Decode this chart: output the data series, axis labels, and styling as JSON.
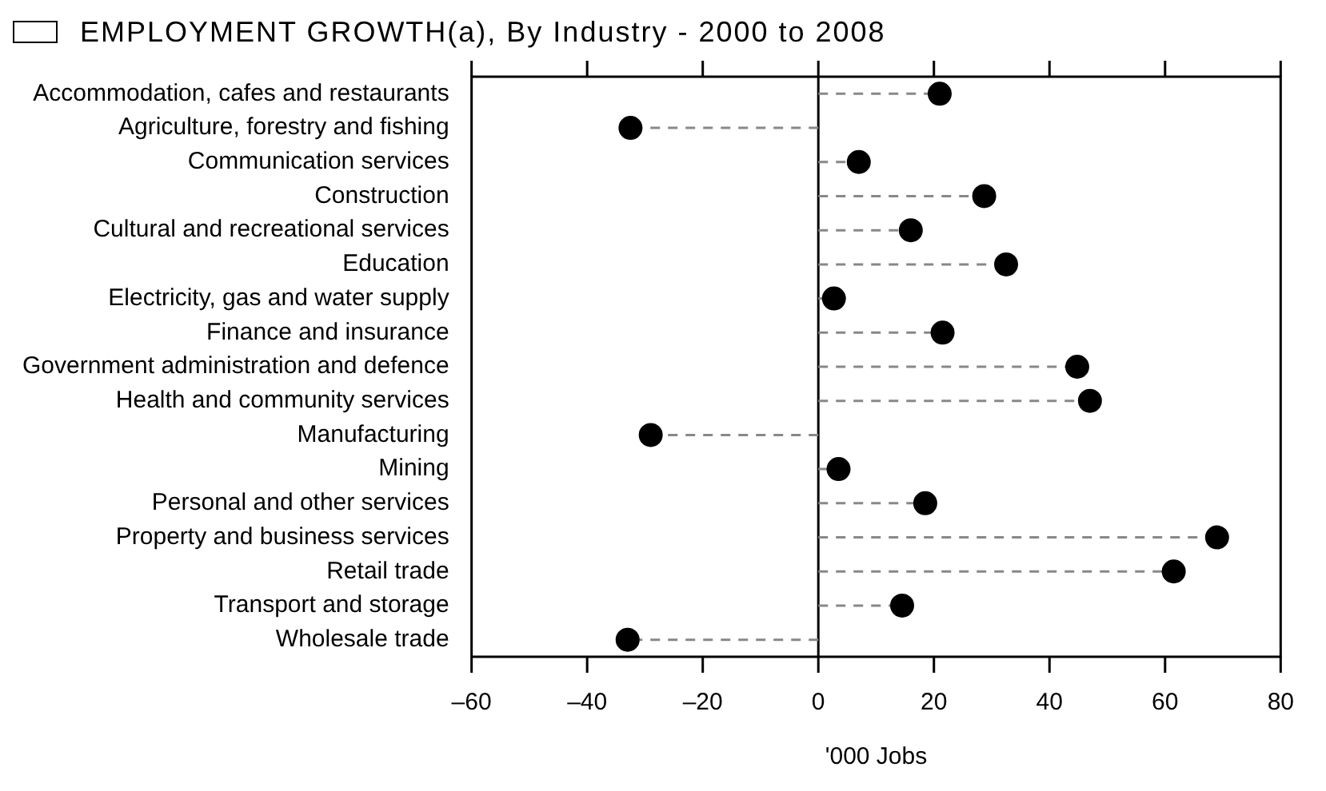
{
  "chart_data": {
    "type": "lollipop",
    "orientation": "horizontal",
    "title": "EMPLOYMENT GROWTH(a), By Industry - 2000 to 2008",
    "xlabel": "'000 Jobs",
    "categories": [
      "Accommodation, cafes and restaurants",
      "Agriculture, forestry and fishing",
      "Communication services",
      "Construction",
      "Cultural and recreational services",
      "Education",
      "Electricity, gas and water supply",
      "Finance and insurance",
      "Government administration and defence",
      "Health and community services",
      "Manufacturing",
      "Mining",
      "Personal and other services",
      "Property and business services",
      "Retail trade",
      "Transport and storage",
      "Wholesale trade"
    ],
    "values": [
      21,
      -32.5,
      7,
      28.7,
      16,
      32.5,
      2.7,
      21.5,
      44.8,
      47,
      -29,
      3.5,
      18.5,
      69,
      61.5,
      14.5,
      -33
    ],
    "color": "#000000",
    "xlim": [
      -60,
      80
    ],
    "xticks": [
      {
        "value": -60,
        "label": "–60"
      },
      {
        "value": -40,
        "label": "–40"
      },
      {
        "value": -20,
        "label": "–20"
      },
      0,
      20,
      40,
      60,
      80
    ],
    "grid": false,
    "ref_lines": [
      {
        "axis": "x",
        "value": 0,
        "color": "#000000"
      }
    ],
    "legend": false,
    "marker": "circle",
    "line_style": "dashed"
  }
}
